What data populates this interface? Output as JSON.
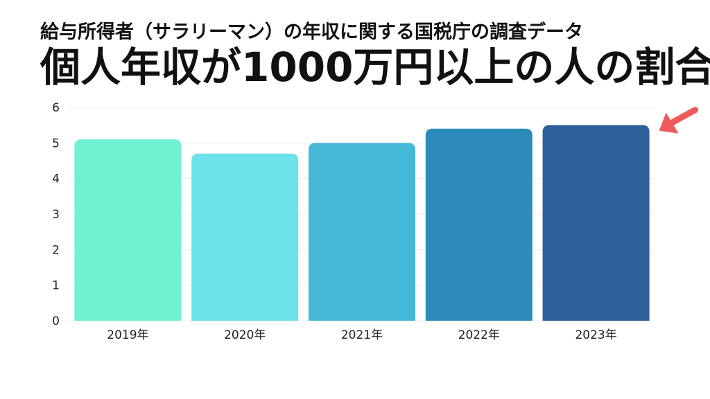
{
  "header": {
    "subtitle": "給与所得者（サラリーマン）の年収に関する国税庁の調査データ",
    "title": "個人年収が1000万円以上の人の割合"
  },
  "chart_data": {
    "type": "bar",
    "categories": [
      "2019年",
      "2020年",
      "2021年",
      "2022年",
      "2023年"
    ],
    "values": [
      5.1,
      4.7,
      5.0,
      5.4,
      5.5
    ],
    "title": "個人年収が1000万円以上の人の割合",
    "subtitle": "給与所得者（サラリーマン）の年収に関する国税庁の調査データ",
    "xlabel": "",
    "ylabel": "",
    "ylim": [
      0,
      6
    ],
    "yticks": [
      0,
      1,
      2,
      3,
      4,
      5,
      6
    ],
    "grid": true,
    "legend": "none",
    "bar_colors": [
      "#6ef2d1",
      "#6be3e8",
      "#45b8d7",
      "#2e8bb9",
      "#2d5f9a"
    ],
    "highlight": {
      "category": "2023年",
      "marker": "arrow",
      "color": "#ef5a5a"
    }
  }
}
